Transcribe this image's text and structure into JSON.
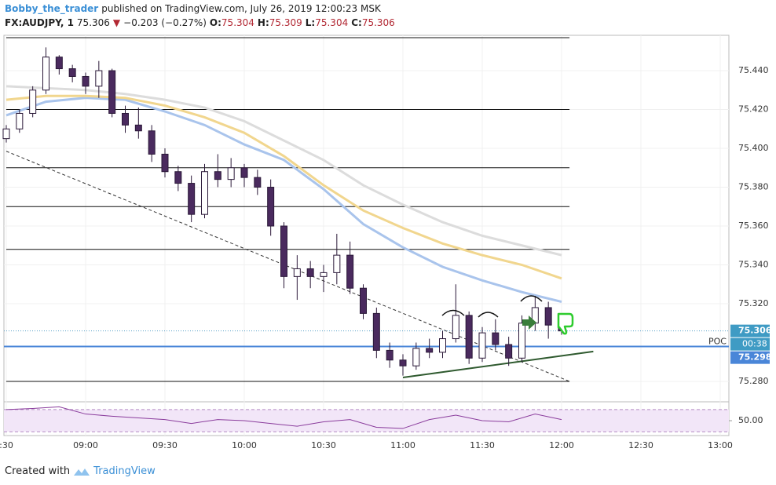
{
  "header": {
    "author": "Bobby_the_trader",
    "published": "published on TradingView.com, July 26, 2019 12:00:23 MSK",
    "symbol": "FX:AUDJPY, 1",
    "price": 75.306,
    "change": "−0.203 (−0.27%)",
    "quote": [
      {
        "label": "O:",
        "value": 75.304
      },
      {
        "label": "H:",
        "value": 75.309
      },
      {
        "label": "L:",
        "value": 75.304
      },
      {
        "label": "C:",
        "value": 75.306
      }
    ]
  },
  "footer": {
    "created": "Created with",
    "brand": "TradingView"
  },
  "chart_data": {
    "type": "candlestick",
    "x": [
      "08:30",
      "08:35",
      "08:40",
      "08:45",
      "08:50",
      "08:55",
      "09:00",
      "09:05",
      "09:10",
      "09:15",
      "09:20",
      "09:25",
      "09:30",
      "09:35",
      "09:40",
      "09:45",
      "09:50",
      "09:55",
      "10:00",
      "10:05",
      "10:10",
      "10:15",
      "10:20",
      "10:25",
      "10:30",
      "10:35",
      "10:40",
      "10:45",
      "10:50",
      "10:55",
      "11:00",
      "11:05",
      "11:10",
      "11:15",
      "11:20",
      "11:25",
      "11:30",
      "11:35",
      "11:40",
      "11:45",
      "11:50",
      "11:55",
      "12:00"
    ],
    "open": [
      75.405,
      75.41,
      75.418,
      75.43,
      75.447,
      75.441,
      75.437,
      75.432,
      75.44,
      75.418,
      75.412,
      75.409,
      75.397,
      75.388,
      75.382,
      75.366,
      75.388,
      75.384,
      75.39,
      75.385,
      75.38,
      75.36,
      75.334,
      75.338,
      75.334,
      75.336,
      75.345,
      75.328,
      75.315,
      75.296,
      75.291,
      75.288,
      75.297,
      75.295,
      75.302,
      75.314,
      75.292,
      75.305,
      75.299,
      75.292,
      75.31,
      75.318,
      75.309
    ],
    "high": [
      75.412,
      75.42,
      75.432,
      75.452,
      75.448,
      75.443,
      75.439,
      75.445,
      75.441,
      75.422,
      75.421,
      75.412,
      75.4,
      75.391,
      75.386,
      75.392,
      75.397,
      75.395,
      75.392,
      75.389,
      75.384,
      75.362,
      75.345,
      75.342,
      75.34,
      75.356,
      75.352,
      75.33,
      75.318,
      75.3,
      75.294,
      75.3,
      75.302,
      75.306,
      75.33,
      75.316,
      75.308,
      75.312,
      75.303,
      75.314,
      75.324,
      75.321,
      75.31
    ],
    "low": [
      75.403,
      75.408,
      75.416,
      75.428,
      75.438,
      75.434,
      75.428,
      75.426,
      75.416,
      75.408,
      75.405,
      75.393,
      75.385,
      75.378,
      75.362,
      75.364,
      75.38,
      75.38,
      75.38,
      75.376,
      75.355,
      75.328,
      75.322,
      75.328,
      75.326,
      75.33,
      75.325,
      75.312,
      75.292,
      75.287,
      75.283,
      75.286,
      75.292,
      75.292,
      75.3,
      75.289,
      75.29,
      75.296,
      75.288,
      75.29,
      75.306,
      75.302,
      75.304
    ],
    "close": [
      75.41,
      75.418,
      75.43,
      75.447,
      75.441,
      75.437,
      75.432,
      75.44,
      75.418,
      75.412,
      75.409,
      75.397,
      75.388,
      75.382,
      75.366,
      75.388,
      75.384,
      75.39,
      75.385,
      75.38,
      75.36,
      75.334,
      75.338,
      75.334,
      75.336,
      75.345,
      75.328,
      75.315,
      75.296,
      75.291,
      75.288,
      75.297,
      75.295,
      75.302,
      75.314,
      75.292,
      75.305,
      75.299,
      75.292,
      75.31,
      75.318,
      75.309,
      75.306
    ],
    "up_color": "#ffffff",
    "down_color": "#4a2a5e",
    "outline_color": "#2a1838",
    "xlim": [
      "08:30",
      "13:00"
    ],
    "xticks": [
      {
        "value": "08:30",
        "label": ":30"
      },
      "09:00",
      "09:30",
      "10:00",
      "10:30",
      "11:00",
      "11:30",
      "12:00",
      "12:30",
      "13:00"
    ],
    "ylim": [
      75.2703,
      75.4582
    ],
    "yticks": [
      {
        "value": 75.44,
        "label": "75.440"
      },
      {
        "value": 75.42,
        "label": "75.420"
      },
      {
        "value": 75.4,
        "label": "75.400"
      },
      {
        "value": 75.38,
        "label": "75.380"
      },
      {
        "value": 75.36,
        "label": "75.360"
      },
      {
        "value": 75.34,
        "label": "75.340"
      },
      {
        "value": 75.32,
        "label": "75.320"
      },
      {
        "value": 75.28,
        "label": "75.280"
      }
    ],
    "grid": true,
    "moving_averages": [
      {
        "color": "#a9c4ec",
        "x": [
          "08:30",
          "08:45",
          "09:00",
          "09:15",
          "09:30",
          "09:45",
          "10:00",
          "10:15",
          "10:30",
          "10:45",
          "11:00",
          "11:15",
          "11:30",
          "11:45",
          "12:00"
        ],
        "values": [
          75.417,
          75.424,
          75.426,
          75.425,
          75.419,
          75.412,
          75.402,
          75.394,
          75.379,
          75.361,
          75.349,
          75.339,
          75.332,
          75.326,
          75.321
        ]
      },
      {
        "color": "#f1d68e",
        "x": [
          "08:30",
          "08:45",
          "09:00",
          "09:15",
          "09:30",
          "09:45",
          "10:00",
          "10:15",
          "10:30",
          "10:45",
          "11:00",
          "11:15",
          "11:30",
          "11:45",
          "12:00"
        ],
        "values": [
          75.425,
          75.427,
          75.427,
          75.426,
          75.422,
          75.416,
          75.408,
          75.396,
          75.381,
          75.368,
          75.359,
          75.351,
          75.345,
          75.34,
          75.333
        ]
      },
      {
        "color": "#dcdcdc",
        "x": [
          "08:30",
          "08:45",
          "09:00",
          "09:15",
          "09:30",
          "09:45",
          "10:00",
          "10:15",
          "10:30",
          "10:45",
          "11:00",
          "11:15",
          "11:30",
          "11:45",
          "12:00"
        ],
        "values": [
          75.432,
          75.431,
          75.43,
          75.428,
          75.425,
          75.421,
          75.414,
          75.404,
          75.394,
          75.381,
          75.371,
          75.362,
          75.355,
          75.35,
          75.345
        ]
      }
    ],
    "levels": [
      75.457,
      75.42,
      75.39,
      75.37,
      75.348,
      75.28
    ],
    "levels_end": "12:03",
    "trendline": {
      "x": [
        "08:30",
        "12:03"
      ],
      "values": [
        75.3985,
        75.28
      ]
    },
    "support": {
      "x": [
        "11:00",
        "12:12"
      ],
      "values": [
        75.282,
        75.2954
      ]
    },
    "last_price": 75.306,
    "countdown": "00:38",
    "poc": {
      "label": "POC",
      "value": 75.298
    },
    "rsi": {
      "color": "#8a3c9c",
      "x": [
        "08:30",
        "08:40",
        "08:50",
        "09:00",
        "09:10",
        "09:20",
        "09:30",
        "09:40",
        "09:50",
        "10:00",
        "10:10",
        "10:20",
        "10:30",
        "10:40",
        "10:50",
        "11:00",
        "11:10",
        "11:20",
        "11:30",
        "11:40",
        "11:50",
        "12:00"
      ],
      "values": [
        70,
        72,
        75,
        62,
        58,
        55,
        52,
        45,
        52,
        50,
        45,
        40,
        48,
        52,
        38,
        36,
        52,
        60,
        50,
        48,
        62,
        52
      ],
      "ylim": [
        26,
        84
      ],
      "yticks": [
        {
          "value": 50,
          "label": "50.00"
        }
      ],
      "bands": [
        30,
        70
      ]
    }
  }
}
